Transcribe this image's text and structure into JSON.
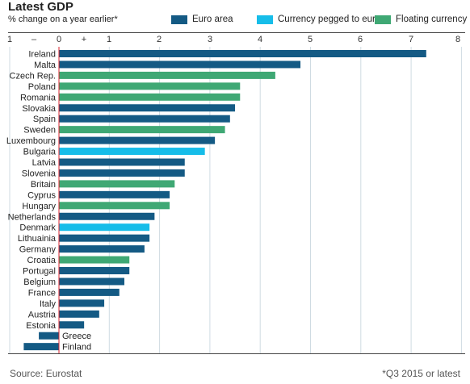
{
  "title": "Latest GDP",
  "subtitle": "% change on a year earlier*",
  "legend": [
    {
      "label": "Euro area",
      "color": "#145a84"
    },
    {
      "label": "Currency pegged to euro",
      "color": "#16bde9"
    },
    {
      "label": "Floating currency",
      "color": "#3fa874"
    }
  ],
  "source": "Source: Eurostat",
  "note": "*Q3 2015 or latest",
  "chart_data": {
    "type": "bar",
    "orientation": "horizontal",
    "title": "Latest GDP",
    "subtitle": "% change on a year earlier*",
    "xlim": [
      -1,
      8
    ],
    "x_ticks": [
      "1",
      "–",
      "0",
      "+",
      "1",
      "2",
      "3",
      "4",
      "5",
      "6",
      "7",
      "8"
    ],
    "grid": true,
    "legend_position": "top-right",
    "categories": [
      "Ireland",
      "Malta",
      "Czech Rep.",
      "Poland",
      "Romania",
      "Slovakia",
      "Spain",
      "Sweden",
      "Luxembourg",
      "Bulgaria",
      "Latvia",
      "Slovenia",
      "Britain",
      "Cyprus",
      "Hungary",
      "Netherlands",
      "Denmark",
      "Lithuainia",
      "Germany",
      "Croatia",
      "Portugal",
      "Belgium",
      "France",
      "Italy",
      "Austria",
      "Estonia",
      "Greece",
      "Finland"
    ],
    "values": [
      7.3,
      4.8,
      4.3,
      3.6,
      3.6,
      3.5,
      3.4,
      3.3,
      3.1,
      2.9,
      2.5,
      2.5,
      2.3,
      2.2,
      2.2,
      1.9,
      1.8,
      1.8,
      1.7,
      1.4,
      1.4,
      1.3,
      1.2,
      0.9,
      0.8,
      0.5,
      -0.4,
      -0.7
    ],
    "groups": [
      "Euro area",
      "Euro area",
      "Floating currency",
      "Floating currency",
      "Floating currency",
      "Euro area",
      "Euro area",
      "Floating currency",
      "Euro area",
      "Currency pegged to euro",
      "Euro area",
      "Euro area",
      "Floating currency",
      "Euro area",
      "Floating currency",
      "Euro area",
      "Currency pegged to euro",
      "Euro area",
      "Euro area",
      "Floating currency",
      "Euro area",
      "Euro area",
      "Euro area",
      "Euro area",
      "Euro area",
      "Euro area",
      "Euro area",
      "Euro area"
    ],
    "group_colors": {
      "Euro area": "#145a84",
      "Currency pegged to euro": "#16bde9",
      "Floating currency": "#3fa874"
    }
  }
}
